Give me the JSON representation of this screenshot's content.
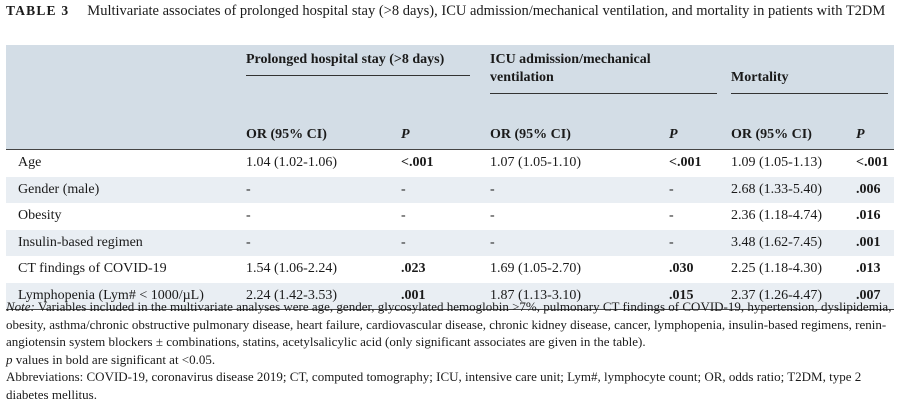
{
  "caption": {
    "label": "TABLE 3",
    "text": "Multivariate associates of prolonged hospital stay (>8 days), ICU admission/mechanical ventilation, and mortality in patients with T2DM"
  },
  "table": {
    "groups": [
      {
        "label": "Prolonged hospital stay (>8 days)"
      },
      {
        "label": "ICU admission/mechanical ventilation"
      },
      {
        "label": "Mortality"
      }
    ],
    "subheaders": {
      "or": "OR (95% CI)",
      "p": "P"
    },
    "rows": [
      {
        "variable": "Age",
        "cells": [
          "1.04 (1.02-1.06)",
          "<.001",
          "1.07 (1.05-1.10)",
          "<.001",
          "1.09 (1.05-1.13)",
          "<.001"
        ]
      },
      {
        "variable": "Gender (male)",
        "cells": [
          "-",
          "-",
          "-",
          "-",
          "2.68 (1.33-5.40)",
          ".006"
        ]
      },
      {
        "variable": "Obesity",
        "cells": [
          "-",
          "-",
          "-",
          "-",
          "2.36 (1.18-4.74)",
          ".016"
        ]
      },
      {
        "variable": "Insulin-based regimen",
        "cells": [
          "-",
          "-",
          "-",
          "-",
          "3.48 (1.62-7.45)",
          ".001"
        ]
      },
      {
        "variable": "CT findings of COVID-19",
        "cells": [
          "1.54 (1.06-2.24)",
          ".023",
          "1.69 (1.05-2.70)",
          ".030",
          "2.25 (1.18-4.30)",
          ".013"
        ]
      },
      {
        "variable": "Lymphopenia (Lym# < 1000/µL)",
        "cells": [
          "2.24 (1.42-3.53)",
          ".001",
          "1.87 (1.13-3.10)",
          ".015",
          "2.37 (1.26-4.47)",
          ".007"
        ]
      }
    ]
  },
  "notes": {
    "note_label": "Note:",
    "note_text": " Variables included in the multivariate analyses were age, gender, glycosylated hemoglobin >7%, pulmonary CT findings of COVID-19, hypertension, dyslipidemia, obesity, asthma/chronic obstructive pulmonary disease, heart failure, cardiovascular disease, chronic kidney disease, cancer, lymphopenia, insulin-based regimens, renin-angiotensin system blockers ± combinations, statins, acetylsalicylic acid (only significant associates are given in the table).",
    "p_label": "p",
    "p_text": " values in bold are significant at <0.05.",
    "abbreviations": "Abbreviations: COVID-19, coronavirus disease 2019; CT, computed tomography; ICU, intensive care unit; Lym#, lymphocyte count; OR, odds ratio; T2DM, type 2 diabetes mellitus."
  }
}
